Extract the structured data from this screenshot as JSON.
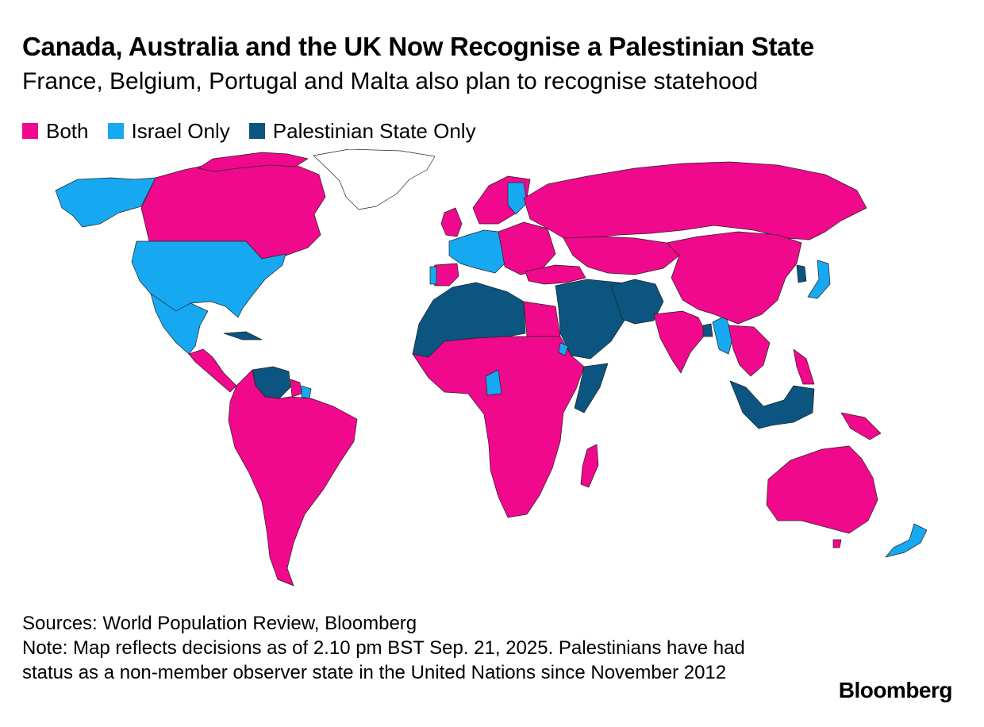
{
  "title": "Canada, Australia and the UK Now Recognise a Palestinian State",
  "subtitle": "France, Belgium, Portugal and Malta also plan to recognise statehood",
  "legend": [
    {
      "label": "Both",
      "color": "#f0098c"
    },
    {
      "label": "Israel Only",
      "color": "#16a9f2"
    },
    {
      "label": "Palestinian State Only",
      "color": "#0b5580"
    }
  ],
  "colors": {
    "both": "#f0098c",
    "israel_only": "#16a9f2",
    "palestine_only": "#0b5580",
    "neither": "#ffffff",
    "border": "#222222"
  },
  "notes": {
    "sources": "Sources: World Population Review, Bloomberg",
    "note": "Note: Map reflects decisions as of 2.10 pm BST Sep. 21, 2025. Palestinians have had status as a non-member observer state in the United Nations since November 2012"
  },
  "brand": "Bloomberg"
}
